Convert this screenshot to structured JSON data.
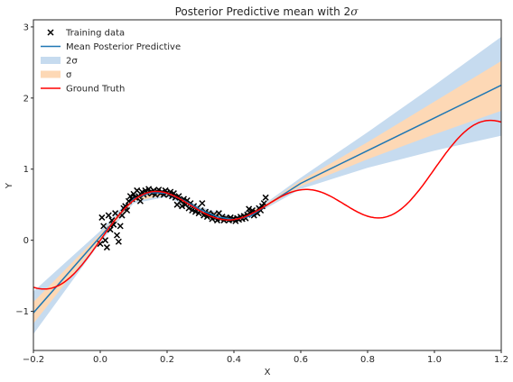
{
  "chart_data": {
    "type": "line",
    "title": "Posterior Predictive mean with 2",
    "title_sigma": "σ",
    "xlabel": "X",
    "ylabel": "Y",
    "xlim": [
      -0.2,
      1.2
    ],
    "ylim": [
      -1.55,
      3.1
    ],
    "xticks": [
      -0.2,
      0.0,
      0.2,
      0.4,
      0.6,
      0.8,
      1.0,
      1.2
    ],
    "xtick_labels": [
      "−0.2",
      "0.0",
      "0.2",
      "0.4",
      "0.6",
      "0.8",
      "1.0",
      "1.2"
    ],
    "yticks": [
      -1,
      0,
      1,
      2,
      3
    ],
    "ytick_labels": [
      "−1",
      "0",
      "1",
      "2",
      "3"
    ],
    "grid": false,
    "legend_position": "top-left",
    "legend": [
      {
        "label": "Training data",
        "kind": "marker",
        "color": "#000000"
      },
      {
        "label": "Mean Posterior Predictive",
        "kind": "line",
        "color": "#1f77b4"
      },
      {
        "label": "2σ",
        "kind": "patch",
        "color": "#c6dbef"
      },
      {
        "label": "σ",
        "kind": "patch",
        "color": "#fdd8b5"
      },
      {
        "label": "Ground Truth",
        "kind": "line",
        "color": "#ff0000"
      }
    ],
    "series": [
      {
        "name": "Mean Posterior Predictive",
        "color": "#1f77b4",
        "x": [
          -0.2,
          0.0,
          0.1,
          0.15,
          0.2,
          0.25,
          0.3,
          0.35,
          0.4,
          0.45,
          0.5,
          0.6,
          0.8,
          1.0,
          1.2
        ],
        "y": [
          -1.02,
          0.05,
          0.58,
          0.67,
          0.66,
          0.56,
          0.43,
          0.33,
          0.29,
          0.34,
          0.5,
          0.8,
          1.26,
          1.72,
          2.18
        ]
      },
      {
        "name": "Ground Truth",
        "color": "#ff0000"
      }
    ],
    "band_2sigma": {
      "color": "#c6dbef",
      "x": [
        -0.2,
        0.0,
        0.1,
        0.2,
        0.3,
        0.4,
        0.5,
        0.6,
        0.8,
        1.0,
        1.2
      ],
      "lower": [
        -1.32,
        -0.03,
        0.52,
        0.61,
        0.39,
        0.26,
        0.46,
        0.72,
        1.02,
        1.26,
        1.47
      ],
      "upper": [
        -0.72,
        0.13,
        0.64,
        0.71,
        0.47,
        0.32,
        0.54,
        0.88,
        1.52,
        2.18,
        2.86
      ]
    },
    "band_sigma": {
      "color": "#fdd8b5",
      "x": [
        -0.2,
        0.0,
        0.1,
        0.2,
        0.3,
        0.4,
        0.5,
        0.6,
        0.8,
        1.0,
        1.2
      ],
      "lower": [
        -1.17,
        0.01,
        0.55,
        0.635,
        0.41,
        0.275,
        0.48,
        0.76,
        1.14,
        1.49,
        1.82
      ],
      "upper": [
        -0.87,
        0.09,
        0.61,
        0.685,
        0.45,
        0.305,
        0.52,
        0.84,
        1.38,
        1.95,
        2.52
      ]
    },
    "training_data": {
      "name": "Training data",
      "marker": "x",
      "color": "#000000",
      "points": [
        [
          0.0,
          -0.05
        ],
        [
          0.005,
          0.32
        ],
        [
          0.01,
          0.2
        ],
        [
          0.015,
          0.0
        ],
        [
          0.02,
          -0.1
        ],
        [
          0.025,
          0.35
        ],
        [
          0.03,
          0.15
        ],
        [
          0.035,
          0.28
        ],
        [
          0.04,
          0.22
        ],
        [
          0.045,
          0.38
        ],
        [
          0.05,
          0.07
        ],
        [
          0.055,
          -0.02
        ],
        [
          0.06,
          0.2
        ],
        [
          0.065,
          0.35
        ],
        [
          0.07,
          0.45
        ],
        [
          0.075,
          0.48
        ],
        [
          0.08,
          0.42
        ],
        [
          0.085,
          0.55
        ],
        [
          0.09,
          0.62
        ],
        [
          0.095,
          0.58
        ],
        [
          0.1,
          0.65
        ],
        [
          0.105,
          0.6
        ],
        [
          0.11,
          0.7
        ],
        [
          0.115,
          0.62
        ],
        [
          0.12,
          0.55
        ],
        [
          0.125,
          0.68
        ],
        [
          0.13,
          0.64
        ],
        [
          0.135,
          0.7
        ],
        [
          0.14,
          0.66
        ],
        [
          0.145,
          0.72
        ],
        [
          0.15,
          0.68
        ],
        [
          0.155,
          0.66
        ],
        [
          0.16,
          0.7
        ],
        [
          0.165,
          0.64
        ],
        [
          0.17,
          0.69
        ],
        [
          0.175,
          0.71
        ],
        [
          0.18,
          0.66
        ],
        [
          0.185,
          0.68
        ],
        [
          0.19,
          0.64
        ],
        [
          0.195,
          0.7
        ],
        [
          0.2,
          0.67
        ],
        [
          0.205,
          0.64
        ],
        [
          0.21,
          0.68
        ],
        [
          0.215,
          0.62
        ],
        [
          0.22,
          0.66
        ],
        [
          0.225,
          0.6
        ],
        [
          0.23,
          0.5
        ],
        [
          0.235,
          0.62
        ],
        [
          0.24,
          0.55
        ],
        [
          0.245,
          0.48
        ],
        [
          0.25,
          0.58
        ],
        [
          0.255,
          0.5
        ],
        [
          0.26,
          0.56
        ],
        [
          0.265,
          0.45
        ],
        [
          0.27,
          0.52
        ],
        [
          0.275,
          0.42
        ],
        [
          0.28,
          0.48
        ],
        [
          0.285,
          0.4
        ],
        [
          0.29,
          0.45
        ],
        [
          0.295,
          0.38
        ],
        [
          0.3,
          0.42
        ],
        [
          0.305,
          0.52
        ],
        [
          0.31,
          0.35
        ],
        [
          0.315,
          0.4
        ],
        [
          0.32,
          0.33
        ],
        [
          0.325,
          0.38
        ],
        [
          0.33,
          0.35
        ],
        [
          0.335,
          0.3
        ],
        [
          0.34,
          0.36
        ],
        [
          0.345,
          0.32
        ],
        [
          0.35,
          0.28
        ],
        [
          0.355,
          0.38
        ],
        [
          0.36,
          0.3
        ],
        [
          0.365,
          0.33
        ],
        [
          0.37,
          0.28
        ],
        [
          0.375,
          0.31
        ],
        [
          0.38,
          0.3
        ],
        [
          0.385,
          0.28
        ],
        [
          0.39,
          0.32
        ],
        [
          0.395,
          0.29
        ],
        [
          0.4,
          0.3
        ],
        [
          0.405,
          0.27
        ],
        [
          0.41,
          0.31
        ],
        [
          0.415,
          0.29
        ],
        [
          0.42,
          0.33
        ],
        [
          0.425,
          0.3
        ],
        [
          0.43,
          0.34
        ],
        [
          0.435,
          0.31
        ],
        [
          0.44,
          0.36
        ],
        [
          0.445,
          0.44
        ],
        [
          0.45,
          0.38
        ],
        [
          0.455,
          0.42
        ],
        [
          0.46,
          0.35
        ],
        [
          0.465,
          0.4
        ],
        [
          0.47,
          0.38
        ],
        [
          0.475,
          0.45
        ],
        [
          0.48,
          0.42
        ],
        [
          0.485,
          0.48
        ],
        [
          0.49,
          0.52
        ],
        [
          0.495,
          0.6
        ]
      ]
    }
  }
}
